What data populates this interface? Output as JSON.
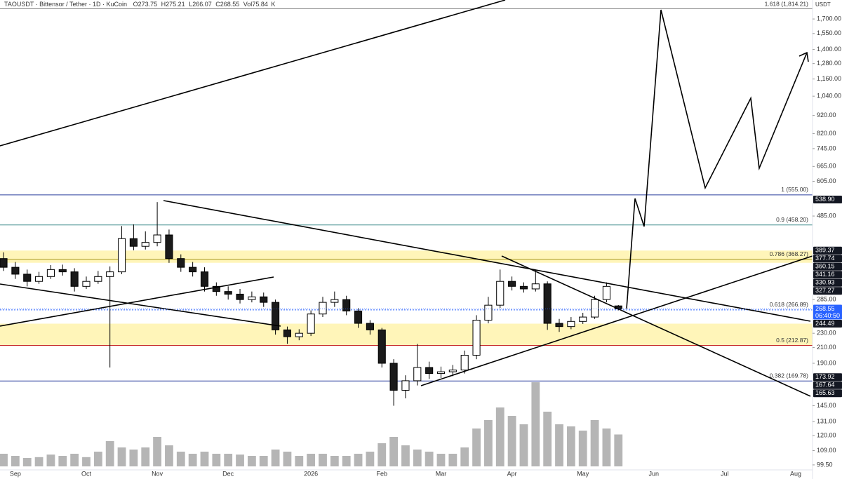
{
  "chart_data": {
    "type": "candlestick",
    "title": "TAOUSDT · Bittensor / Tether · 1D · KuCoin",
    "header": {
      "o": "O",
      "h": "H",
      "l": "L",
      "c": "C",
      "vol": "Vol",
      "vol_unit": "K"
    },
    "unit": "USDT",
    "countdown": "06:40:50",
    "log_scale": true,
    "ylim": [
      96.4,
      1814.21
    ],
    "yticks": [
      {
        "value": 1700,
        "label": "1,700.00"
      },
      {
        "value": 1550,
        "label": "1,550.00"
      },
      {
        "value": 1400,
        "label": "1,400.00"
      },
      {
        "value": 1280,
        "label": "1,280.00"
      },
      {
        "value": 1160,
        "label": "1,160.00"
      },
      {
        "value": 1040,
        "label": "1,040.00"
      },
      {
        "value": 920,
        "label": "920.00"
      },
      {
        "value": 820,
        "label": "820.00"
      },
      {
        "value": 745,
        "label": "745.00"
      },
      {
        "value": 665,
        "label": "665.00"
      },
      {
        "value": 605,
        "label": "605.00"
      },
      {
        "value": 485,
        "label": "485.00"
      },
      {
        "value": 285,
        "label": "285.00"
      },
      {
        "value": 230,
        "label": "230.00"
      },
      {
        "value": 210,
        "label": "210.00"
      },
      {
        "value": 190,
        "label": "190.00"
      },
      {
        "value": 145,
        "label": "145.00"
      },
      {
        "value": 131,
        "label": "131.00"
      },
      {
        "value": 120,
        "label": "120.00"
      },
      {
        "value": 109,
        "label": "109.00"
      },
      {
        "value": 99.5,
        "label": "99.50"
      }
    ],
    "categories": [
      null,
      "Sep",
      null,
      null,
      null,
      null,
      null,
      "Oct",
      null,
      null,
      null,
      null,
      null,
      "Nov",
      null,
      null,
      null,
      null,
      null,
      "Dec",
      null,
      null,
      null,
      null,
      null,
      null,
      "2026",
      null,
      null,
      null,
      null,
      null,
      "Feb",
      null,
      null,
      null,
      null,
      "Mar",
      null,
      null,
      null,
      null,
      null,
      "Apr",
      null,
      null,
      null,
      null,
      null,
      "May",
      null,
      null,
      null,
      null,
      null,
      "Jun",
      null,
      null,
      null,
      null,
      null,
      "Jul",
      null,
      null,
      null,
      null,
      null,
      "Aug",
      null
    ],
    "open": [
      370,
      350,
      335,
      320,
      330,
      345,
      340,
      310,
      320,
      330,
      340,
      420,
      400,
      410,
      430,
      370,
      350,
      340,
      310,
      300,
      295,
      285,
      290,
      280,
      235,
      225,
      230,
      260,
      280,
      285,
      265,
      245,
      235,
      190,
      160,
      170,
      185,
      178,
      180,
      182,
      200,
      250,
      275,
      320,
      310,
      305,
      315,
      245,
      240,
      248,
      255,
      285,
      273.75,
      null,
      null,
      null,
      null,
      null,
      null,
      null,
      null,
      null,
      null,
      null,
      null,
      null,
      null,
      null,
      null
    ],
    "high": [
      385,
      362,
      345,
      340,
      355,
      356,
      348,
      330,
      342,
      352,
      455,
      460,
      440,
      530,
      445,
      380,
      362,
      350,
      318,
      310,
      305,
      300,
      298,
      285,
      240,
      236,
      266,
      290,
      300,
      292,
      270,
      250,
      238,
      195,
      176,
      215,
      192,
      186,
      188,
      206,
      258,
      290,
      345,
      330,
      318,
      345,
      320,
      252,
      255,
      262,
      292,
      318,
      275.21,
      null,
      null,
      null,
      null,
      null,
      null,
      null,
      null,
      null,
      null,
      null,
      null,
      null,
      null,
      null,
      null
    ],
    "low": [
      342,
      325,
      310,
      315,
      325,
      332,
      300,
      305,
      315,
      185,
      335,
      390,
      392,
      400,
      360,
      340,
      330,
      300,
      292,
      285,
      278,
      280,
      272,
      228,
      215,
      220,
      226,
      255,
      272,
      258,
      238,
      228,
      185,
      145,
      152,
      165,
      172,
      173,
      175,
      178,
      195,
      245,
      270,
      302,
      298,
      300,
      235,
      232,
      236,
      244,
      252,
      280,
      266.07,
      null,
      null,
      null,
      null,
      null,
      null,
      null,
      null,
      null,
      null,
      null,
      null,
      null,
      null,
      null,
      null
    ],
    "close": [
      350,
      335,
      320,
      330,
      345,
      340,
      310,
      320,
      330,
      340,
      420,
      400,
      410,
      430,
      370,
      350,
      340,
      310,
      300,
      295,
      285,
      290,
      280,
      235,
      225,
      230,
      260,
      280,
      285,
      265,
      245,
      235,
      190,
      160,
      170,
      185,
      178,
      180,
      182,
      200,
      250,
      275,
      320,
      310,
      305,
      315,
      245,
      240,
      248,
      255,
      285,
      310,
      268.55,
      null,
      null,
      null,
      null,
      null,
      null,
      null,
      null,
      null,
      null,
      null,
      null,
      null,
      null,
      null,
      null
    ],
    "volume": [
      30,
      25,
      20,
      22,
      28,
      25,
      30,
      22,
      35,
      60,
      45,
      40,
      45,
      70,
      50,
      35,
      30,
      35,
      30,
      30,
      28,
      25,
      25,
      40,
      35,
      25,
      30,
      30,
      25,
      25,
      30,
      35,
      55,
      70,
      50,
      40,
      35,
      30,
      30,
      45,
      90,
      110,
      140,
      120,
      100,
      200,
      130,
      100,
      95,
      85,
      110,
      90,
      75.84,
      null,
      null,
      null,
      null,
      null,
      null,
      null,
      null,
      null,
      null,
      null,
      null,
      null,
      null,
      null,
      null
    ],
    "colors": {
      "up": "#ffffff",
      "down": "#1a1a1a",
      "volume": "#a8a8a8",
      "zone": "#fff2a8",
      "tag": "#131722",
      "current": "#2962ff"
    },
    "levels": [
      {
        "label": "1.618 (1,814.21)",
        "value": 1814.21,
        "color": "#8a8a8a"
      },
      {
        "label": "1 (555.00)",
        "value": 555,
        "color": "#2a3f9e"
      },
      {
        "label": "0.9 (458.20)",
        "value": 458.2,
        "color": "#3d8b8b"
      },
      {
        "label": "0.786 (368.27)",
        "value": 368.27,
        "color": "#a89a20"
      },
      {
        "label": "0.618 (266.89)",
        "value": 266.89,
        "color": "#2962ff"
      },
      {
        "label": "0.5 (212.87)",
        "value": 212.87,
        "color": "#c62828"
      },
      {
        "label": "0.382 (169.78)",
        "value": 169.78,
        "color": "#2a3f9e"
      }
    ],
    "zones": [
      {
        "from": 360.15,
        "to": 389.37
      },
      {
        "from": 212.87,
        "to": 244.49
      }
    ],
    "price_tags": [
      {
        "value": 538.9,
        "label": "538.90"
      },
      389.37,
      377.74,
      360.15,
      341.16,
      330.93,
      327.27,
      244.49,
      173.92,
      167.64,
      165.63
    ]
  }
}
